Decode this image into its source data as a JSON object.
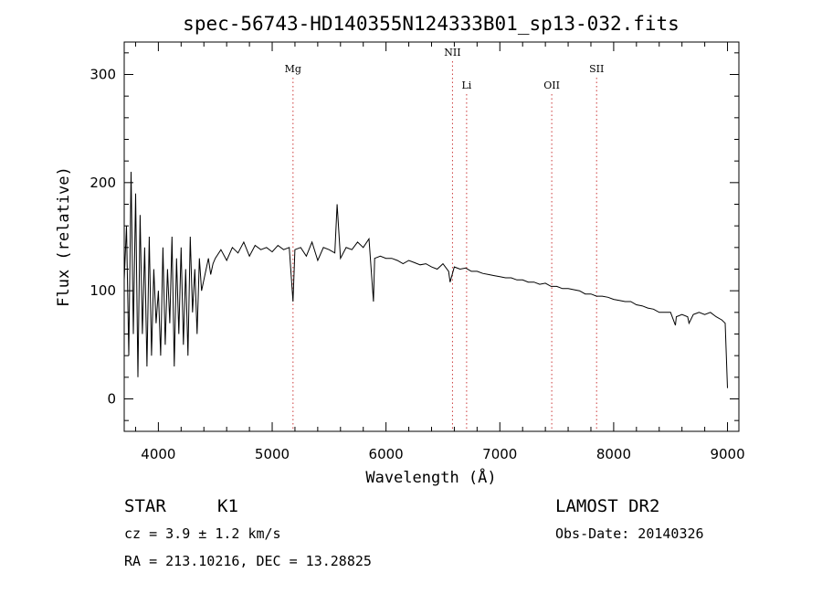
{
  "chart_data": {
    "type": "line",
    "title": "spec-56743-HD140355N124333B01_sp13-032.fits",
    "xlabel": "Wavelength (Å)",
    "ylabel": "Flux (relative)",
    "xlim": [
      3700,
      9100
    ],
    "ylim": [
      -30,
      330
    ],
    "x_ticks": [
      4000,
      5000,
      6000,
      7000,
      8000,
      9000
    ],
    "y_ticks": [
      0,
      100,
      200,
      300
    ],
    "grid": false,
    "series": [
      {
        "x": [
          3700,
          3720,
          3740,
          3760,
          3780,
          3800,
          3820,
          3840,
          3860,
          3880,
          3900,
          3920,
          3940,
          3960,
          3980,
          4000,
          4020,
          4040,
          4060,
          4080,
          4100,
          4120,
          4140,
          4160,
          4180,
          4200,
          4220,
          4240,
          4260,
          4280,
          4300,
          4320,
          4340,
          4360,
          4380,
          4400,
          4420,
          4440,
          4460,
          4480,
          4500,
          4550,
          4600,
          4650,
          4700,
          4750,
          4800,
          4850,
          4900,
          4950,
          5000,
          5050,
          5100,
          5150,
          5183,
          5200,
          5250,
          5300,
          5350,
          5400,
          5450,
          5500,
          5550,
          5570,
          5600,
          5650,
          5700,
          5750,
          5800,
          5850,
          5890,
          5900,
          5950,
          6000,
          6050,
          6100,
          6150,
          6200,
          6250,
          6300,
          6350,
          6400,
          6450,
          6500,
          6550,
          6563,
          6600,
          6650,
          6700,
          6750,
          6800,
          6850,
          6900,
          6950,
          7000,
          7050,
          7100,
          7150,
          7200,
          7250,
          7300,
          7350,
          7400,
          7450,
          7500,
          7550,
          7600,
          7650,
          7700,
          7750,
          7800,
          7850,
          7900,
          7950,
          8000,
          8050,
          8100,
          8150,
          8200,
          8250,
          8300,
          8350,
          8400,
          8450,
          8500,
          8542,
          8550,
          8600,
          8650,
          8662,
          8700,
          8750,
          8800,
          8850,
          8900,
          8950,
          8980,
          9000
        ],
        "values": [
          110,
          160,
          40,
          210,
          60,
          190,
          20,
          170,
          60,
          140,
          30,
          150,
          40,
          120,
          70,
          100,
          40,
          140,
          50,
          120,
          70,
          150,
          30,
          130,
          60,
          140,
          50,
          120,
          40,
          150,
          80,
          120,
          60,
          130,
          100,
          110,
          120,
          130,
          115,
          125,
          130,
          138,
          128,
          140,
          135,
          145,
          132,
          142,
          138,
          140,
          136,
          142,
          138,
          140,
          90,
          138,
          140,
          132,
          145,
          128,
          140,
          138,
          135,
          180,
          130,
          140,
          138,
          145,
          140,
          148,
          90,
          130,
          132,
          130,
          130,
          128,
          125,
          128,
          126,
          124,
          125,
          122,
          120,
          125,
          118,
          108,
          122,
          120,
          121,
          118,
          118,
          116,
          115,
          114,
          113,
          112,
          112,
          110,
          110,
          108,
          108,
          106,
          107,
          104,
          104,
          102,
          102,
          101,
          100,
          97,
          97,
          95,
          95,
          94,
          92,
          91,
          90,
          90,
          87,
          86,
          84,
          83,
          80,
          80,
          80,
          68,
          76,
          78,
          76,
          70,
          78,
          80,
          78,
          80,
          76,
          73,
          70,
          10
        ]
      }
    ],
    "line_markers": [
      {
        "label": "Mg",
        "x": 5183
      },
      {
        "label": "NII",
        "x": 6584
      },
      {
        "label": "Li",
        "x": 6708
      },
      {
        "label": "OII",
        "x": 7456
      },
      {
        "label": "SII",
        "x": 7850
      }
    ]
  },
  "info": {
    "class": "STAR",
    "subclass": "K1",
    "survey": "LAMOST DR2",
    "cz": "cz = 3.9 ± 1.2 km/s",
    "obs_date": "Obs-Date: 20140326",
    "coords": "RA = 213.10216, DEC =  13.28825"
  }
}
